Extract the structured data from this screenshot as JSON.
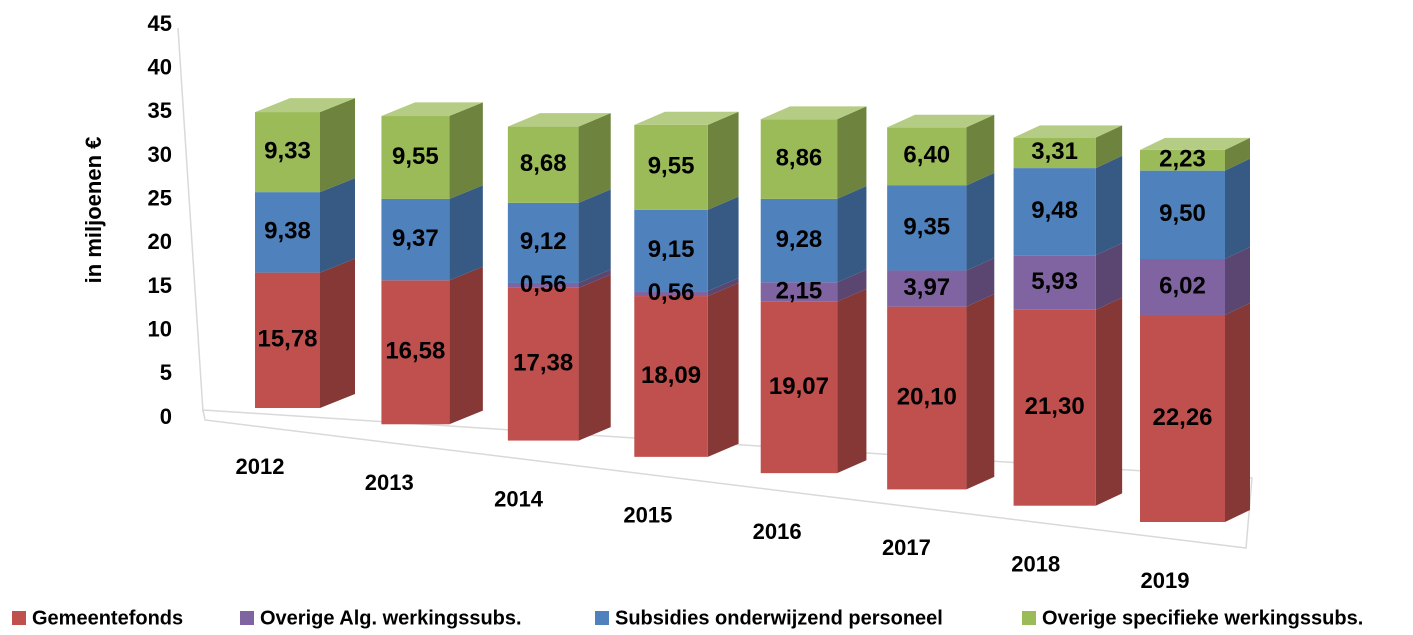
{
  "chart_data": {
    "type": "bar3d_stacked",
    "y_axis_label": "in miljoenen €",
    "categories": [
      "2012",
      "2013",
      "2014",
      "2015",
      "2016",
      "2017",
      "2018",
      "2019"
    ],
    "ylim": [
      0,
      45
    ],
    "yticks": [
      0,
      5,
      10,
      15,
      20,
      25,
      30,
      35,
      40,
      45
    ],
    "legend": "bottom",
    "series": [
      {
        "name": "Gemeentefonds",
        "color": "#c0504d",
        "values": [
          15.78,
          16.58,
          17.38,
          18.09,
          19.07,
          20.1,
          21.3,
          22.26
        ],
        "value_labels": [
          "15,78",
          "16,58",
          "17,38",
          "18,09",
          "19,07",
          "20,10",
          "21,30",
          "22,26"
        ]
      },
      {
        "name": "Overige Alg. werkingssubs.",
        "color": "#8064a2",
        "values": [
          null,
          null,
          0.56,
          0.56,
          2.15,
          3.97,
          5.93,
          6.02
        ],
        "value_labels": [
          null,
          null,
          "0,56",
          "0,56",
          "2,15",
          "3,97",
          "5,93",
          "6,02"
        ]
      },
      {
        "name": "Subsidies onderwijzend personeel",
        "color": "#4f81bd",
        "values": [
          9.38,
          9.37,
          9.12,
          9.15,
          9.28,
          9.35,
          9.48,
          9.5
        ],
        "value_labels": [
          "9,38",
          "9,37",
          "9,12",
          "9,15",
          "9,28",
          "9,35",
          "9,48",
          "9,50"
        ]
      },
      {
        "name": "Overige specifieke werkingssubs.",
        "color": "#9bbb59",
        "values": [
          9.33,
          9.55,
          8.68,
          9.55,
          8.86,
          6.4,
          3.31,
          2.23
        ],
        "value_labels": [
          "9,33",
          "9,55",
          "8,68",
          "9,55",
          "8,86",
          "6,40",
          "3,31",
          "2,23"
        ]
      }
    ]
  }
}
